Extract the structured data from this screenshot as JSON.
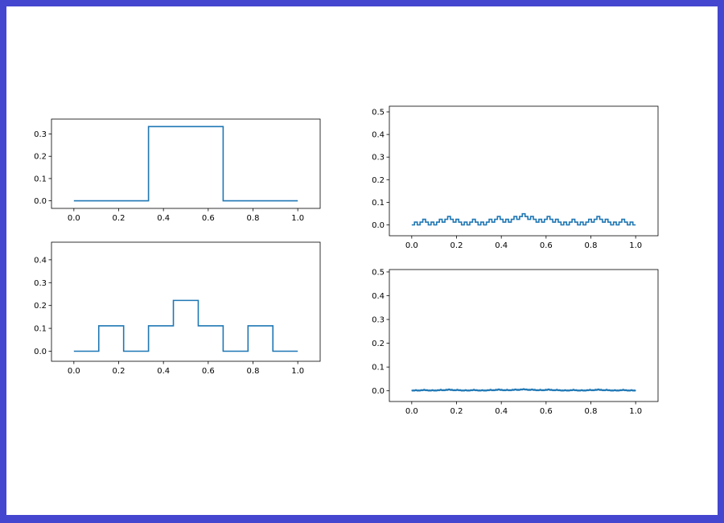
{
  "colors": {
    "window_border": "#4446d0",
    "background": "#ffffff",
    "line": "#1f77b4"
  },
  "chart_data": [
    {
      "type": "line",
      "title": "",
      "xlabel": "",
      "ylabel": "",
      "grid": false,
      "xlim": [
        -0.1,
        1.1
      ],
      "ylim": [
        -0.034,
        0.367
      ],
      "xticks": [
        "0.0",
        "0.2",
        "0.4",
        "0.6",
        "0.8",
        "1.0"
      ],
      "yticks": [
        "0.0",
        "0.1",
        "0.2",
        "0.3"
      ],
      "series": [
        {
          "level": 1,
          "color": "#1f77b4"
        }
      ]
    },
    {
      "type": "line",
      "title": "",
      "xlabel": "",
      "ylabel": "",
      "grid": false,
      "xlim": [
        -0.1,
        1.1
      ],
      "ylim": [
        -0.044,
        0.477
      ],
      "xticks": [
        "0.0",
        "0.2",
        "0.4",
        "0.6",
        "0.8",
        "1.0"
      ],
      "yticks": [
        "0.0",
        "0.1",
        "0.2",
        "0.3",
        "0.4"
      ],
      "series": [
        {
          "level": 2,
          "color": "#1f77b4"
        }
      ]
    },
    {
      "type": "line",
      "title": "",
      "xlabel": "",
      "ylabel": "",
      "grid": false,
      "xlim": [
        -0.1,
        1.1
      ],
      "ylim": [
        -0.048,
        0.525
      ],
      "xticks": [
        "0.0",
        "0.2",
        "0.4",
        "0.6",
        "0.8",
        "1.0"
      ],
      "yticks": [
        "0.0",
        "0.1",
        "0.2",
        "0.3",
        "0.4",
        "0.5"
      ],
      "series": [
        {
          "level": 4,
          "color": "#1f77b4"
        }
      ]
    },
    {
      "type": "line",
      "title": "",
      "xlabel": "",
      "ylabel": "",
      "grid": false,
      "xlim": [
        -0.1,
        1.1
      ],
      "ylim": [
        -0.045,
        0.51
      ],
      "xticks": [
        "0.0",
        "0.2",
        "0.4",
        "0.6",
        "0.8",
        "1.0"
      ],
      "yticks": [
        "0.0",
        "0.1",
        "0.2",
        "0.3",
        "0.4",
        "0.5"
      ],
      "series": [
        {
          "level": 6,
          "color": "#1f77b4"
        }
      ]
    }
  ]
}
